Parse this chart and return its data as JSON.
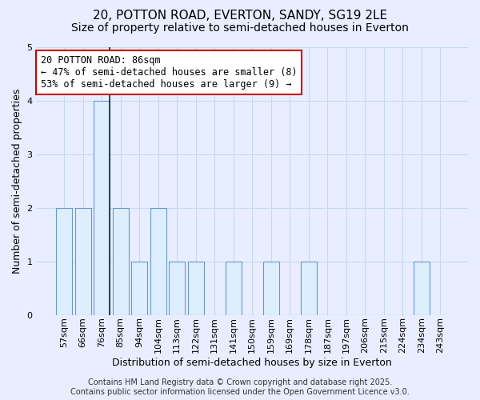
{
  "title_line1": "20, POTTON ROAD, EVERTON, SANDY, SG19 2LE",
  "title_line2": "Size of property relative to semi-detached houses in Everton",
  "xlabel": "Distribution of semi-detached houses by size in Everton",
  "ylabel": "Number of semi-detached properties",
  "categories": [
    "57sqm",
    "66sqm",
    "76sqm",
    "85sqm",
    "94sqm",
    "104sqm",
    "113sqm",
    "122sqm",
    "131sqm",
    "141sqm",
    "150sqm",
    "159sqm",
    "169sqm",
    "178sqm",
    "187sqm",
    "197sqm",
    "206sqm",
    "215sqm",
    "224sqm",
    "234sqm",
    "243sqm"
  ],
  "values": [
    2,
    2,
    4,
    2,
    1,
    2,
    1,
    1,
    0,
    1,
    0,
    1,
    0,
    1,
    0,
    0,
    0,
    0,
    0,
    1,
    0
  ],
  "bar_color": "#ddeeff",
  "bar_edge_color": "#6699cc",
  "subject_bar_index": 2,
  "subject_line_color": "#222222",
  "annotation_line1": "20 POTTON ROAD: 86sqm",
  "annotation_line2": "← 47% of semi-detached houses are smaller (8)",
  "annotation_line3": "53% of semi-detached houses are larger (9) →",
  "annotation_box_color": "#ffffff",
  "annotation_box_edge_color": "#cc0000",
  "ylim": [
    0,
    5
  ],
  "yticks": [
    0,
    1,
    2,
    3,
    4,
    5
  ],
  "footer_line1": "Contains HM Land Registry data © Crown copyright and database right 2025.",
  "footer_line2": "Contains public sector information licensed under the Open Government Licence v3.0.",
  "bg_color": "#e8eeff",
  "plot_bg_color": "#e8eeff",
  "grid_color": "#c8d8f0",
  "title_fontsize": 11,
  "subtitle_fontsize": 10,
  "axis_label_fontsize": 9,
  "tick_fontsize": 8,
  "footer_fontsize": 7,
  "annotation_fontsize": 8.5
}
